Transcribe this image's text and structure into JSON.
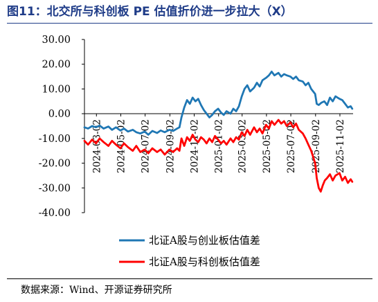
{
  "title": "图11：北交所与科创板 PE 估值折价进一步拉大（X）",
  "source": "数据来源：Wind、开源证券研究所",
  "chart_data": {
    "type": "line",
    "title": "北交所与科创板 PE 估值折价进一步拉大（X）",
    "xlabel": "",
    "ylabel": "",
    "ylim": [
      -40,
      30
    ],
    "yticks": [
      "30.00",
      "20.00",
      "10.00",
      "0.00",
      "-10.00",
      "-20.00",
      "-30.00",
      "-40.00"
    ],
    "x_ticks": [
      "2024-03-02",
      "2024-05-02",
      "2024-07-02",
      "2024-09-02",
      "2024-11-02",
      "2025-01-02",
      "2025-03-02",
      "2025-05-02",
      "2025-07-02",
      "2025-09-02",
      "2025-11-02"
    ],
    "x_range": [
      "2024-02-01",
      "2025-12-05"
    ],
    "grid": false,
    "legend_position": "bottom",
    "series": [
      {
        "name": "北证A股与创业板估值差",
        "color": "#1f77b4",
        "points": [
          [
            "2024-02-01",
            -5.5
          ],
          [
            "2024-02-10",
            -6.0
          ],
          [
            "2024-02-20",
            -5.0
          ],
          [
            "2024-03-01",
            -5.5
          ],
          [
            "2024-03-10",
            -4.8
          ],
          [
            "2024-03-20",
            -6.0
          ],
          [
            "2024-04-01",
            -5.2
          ],
          [
            "2024-04-10",
            -6.5
          ],
          [
            "2024-04-20",
            -5.5
          ],
          [
            "2024-05-01",
            -6.8
          ],
          [
            "2024-05-10",
            -6.0
          ],
          [
            "2024-05-20",
            -7.2
          ],
          [
            "2024-06-01",
            -6.5
          ],
          [
            "2024-06-10",
            -7.5
          ],
          [
            "2024-06-20",
            -8.0
          ],
          [
            "2024-07-01",
            -7.2
          ],
          [
            "2024-07-10",
            -8.5
          ],
          [
            "2024-07-20",
            -7.0
          ],
          [
            "2024-08-01",
            -7.8
          ],
          [
            "2024-08-10",
            -6.8
          ],
          [
            "2024-08-20",
            -7.5
          ],
          [
            "2024-09-01",
            -6.5
          ],
          [
            "2024-09-10",
            -7.0
          ],
          [
            "2024-09-20",
            -6.0
          ],
          [
            "2024-09-26",
            -5.5
          ],
          [
            "2024-10-01",
            -1.5
          ],
          [
            "2024-10-08",
            2.5
          ],
          [
            "2024-10-15",
            5.5
          ],
          [
            "2024-10-22",
            4.0
          ],
          [
            "2024-10-29",
            6.5
          ],
          [
            "2024-11-05",
            5.0
          ],
          [
            "2024-11-12",
            6.0
          ],
          [
            "2024-11-19",
            3.5
          ],
          [
            "2024-11-26",
            1.5
          ],
          [
            "2024-12-03",
            0.0
          ],
          [
            "2024-12-10",
            -1.5
          ],
          [
            "2024-12-17",
            -0.5
          ],
          [
            "2024-12-24",
            1.0
          ],
          [
            "2025-01-01",
            2.0
          ],
          [
            "2025-01-08",
            0.5
          ],
          [
            "2025-01-15",
            -0.5
          ],
          [
            "2025-01-22",
            1.0
          ],
          [
            "2025-02-01",
            0.0
          ],
          [
            "2025-02-08",
            2.0
          ],
          [
            "2025-02-15",
            1.0
          ],
          [
            "2025-02-22",
            3.0
          ],
          [
            "2025-03-01",
            7.0
          ],
          [
            "2025-03-08",
            10.0
          ],
          [
            "2025-03-15",
            11.5
          ],
          [
            "2025-03-22",
            9.0
          ],
          [
            "2025-04-01",
            10.5
          ],
          [
            "2025-04-08",
            12.5
          ],
          [
            "2025-04-15",
            11.0
          ],
          [
            "2025-04-22",
            13.5
          ],
          [
            "2025-05-01",
            14.5
          ],
          [
            "2025-05-08",
            15.5
          ],
          [
            "2025-05-15",
            17.0
          ],
          [
            "2025-05-22",
            15.5
          ],
          [
            "2025-06-01",
            16.5
          ],
          [
            "2025-06-08",
            15.0
          ],
          [
            "2025-06-15",
            16.0
          ],
          [
            "2025-06-22",
            15.5
          ],
          [
            "2025-07-01",
            15.0
          ],
          [
            "2025-07-08",
            14.0
          ],
          [
            "2025-07-15",
            15.0
          ],
          [
            "2025-07-22",
            13.5
          ],
          [
            "2025-08-01",
            13.0
          ],
          [
            "2025-08-08",
            11.5
          ],
          [
            "2025-08-15",
            12.5
          ],
          [
            "2025-08-22",
            10.0
          ],
          [
            "2025-09-01",
            8.0
          ],
          [
            "2025-09-05",
            4.0
          ],
          [
            "2025-09-10",
            3.5
          ],
          [
            "2025-09-17",
            4.5
          ],
          [
            "2025-09-24",
            5.0
          ],
          [
            "2025-10-01",
            3.5
          ],
          [
            "2025-10-08",
            6.5
          ],
          [
            "2025-10-15",
            5.0
          ],
          [
            "2025-10-22",
            7.0
          ],
          [
            "2025-11-01",
            6.0
          ],
          [
            "2025-11-08",
            5.5
          ],
          [
            "2025-11-15",
            4.0
          ],
          [
            "2025-11-22",
            2.5
          ],
          [
            "2025-11-29",
            3.0
          ],
          [
            "2025-12-03",
            2.0
          ]
        ]
      },
      {
        "name": "北证A股与科创板估值差",
        "color": "#ff0000",
        "points": [
          [
            "2024-02-01",
            -11.0
          ],
          [
            "2024-02-10",
            -12.5
          ],
          [
            "2024-02-20",
            -10.5
          ],
          [
            "2024-03-01",
            -12.0
          ],
          [
            "2024-03-10",
            -10.0
          ],
          [
            "2024-03-20",
            -11.5
          ],
          [
            "2024-04-01",
            -13.0
          ],
          [
            "2024-04-10",
            -11.0
          ],
          [
            "2024-04-20",
            -12.5
          ],
          [
            "2024-05-01",
            -14.0
          ],
          [
            "2024-05-10",
            -12.0
          ],
          [
            "2024-05-20",
            -13.5
          ],
          [
            "2024-06-01",
            -15.0
          ],
          [
            "2024-06-10",
            -13.0
          ],
          [
            "2024-06-20",
            -15.5
          ],
          [
            "2024-07-01",
            -14.5
          ],
          [
            "2024-07-10",
            -16.0
          ],
          [
            "2024-07-20",
            -14.0
          ],
          [
            "2024-08-01",
            -15.5
          ],
          [
            "2024-08-10",
            -14.5
          ],
          [
            "2024-08-20",
            -16.5
          ],
          [
            "2024-09-01",
            -14.5
          ],
          [
            "2024-09-10",
            -15.5
          ],
          [
            "2024-09-20",
            -14.0
          ],
          [
            "2024-09-26",
            -15.0
          ],
          [
            "2024-10-01",
            -10.0
          ],
          [
            "2024-10-08",
            -13.0
          ],
          [
            "2024-10-15",
            -9.5
          ],
          [
            "2024-10-22",
            -11.0
          ],
          [
            "2024-10-29",
            -8.5
          ],
          [
            "2024-11-05",
            -10.5
          ],
          [
            "2024-11-12",
            -11.5
          ],
          [
            "2024-11-19",
            -9.5
          ],
          [
            "2024-11-26",
            -10.5
          ],
          [
            "2024-12-03",
            -12.0
          ],
          [
            "2024-12-10",
            -10.0
          ],
          [
            "2024-12-17",
            -11.5
          ],
          [
            "2024-12-24",
            -9.0
          ],
          [
            "2025-01-01",
            -10.5
          ],
          [
            "2025-01-08",
            -12.0
          ],
          [
            "2025-01-15",
            -11.0
          ],
          [
            "2025-01-22",
            -12.5
          ],
          [
            "2025-02-01",
            -10.0
          ],
          [
            "2025-02-08",
            -11.5
          ],
          [
            "2025-02-15",
            -9.5
          ],
          [
            "2025-02-22",
            -10.5
          ],
          [
            "2025-03-01",
            -7.5
          ],
          [
            "2025-03-08",
            -9.0
          ],
          [
            "2025-03-15",
            -6.5
          ],
          [
            "2025-03-22",
            -8.5
          ],
          [
            "2025-04-01",
            -5.5
          ],
          [
            "2025-04-08",
            -7.5
          ],
          [
            "2025-04-15",
            -6.0
          ],
          [
            "2025-04-22",
            -8.0
          ],
          [
            "2025-05-01",
            -4.5
          ],
          [
            "2025-05-08",
            -6.0
          ],
          [
            "2025-05-15",
            -3.0
          ],
          [
            "2025-05-22",
            -4.5
          ],
          [
            "2025-06-01",
            -2.5
          ],
          [
            "2025-06-08",
            -4.0
          ],
          [
            "2025-06-15",
            -3.0
          ],
          [
            "2025-06-22",
            -5.0
          ],
          [
            "2025-07-01",
            -3.5
          ],
          [
            "2025-07-08",
            -5.5
          ],
          [
            "2025-07-15",
            -4.0
          ],
          [
            "2025-07-22",
            -6.5
          ],
          [
            "2025-08-01",
            -8.0
          ],
          [
            "2025-08-08",
            -10.0
          ],
          [
            "2025-08-15",
            -12.5
          ],
          [
            "2025-08-22",
            -15.0
          ],
          [
            "2025-09-01",
            -20.0
          ],
          [
            "2025-09-05",
            -26.0
          ],
          [
            "2025-09-10",
            -30.0
          ],
          [
            "2025-09-15",
            -31.5
          ],
          [
            "2025-09-20",
            -29.0
          ],
          [
            "2025-09-25",
            -27.0
          ],
          [
            "2025-10-01",
            -26.0
          ],
          [
            "2025-10-08",
            -24.5
          ],
          [
            "2025-10-15",
            -27.0
          ],
          [
            "2025-10-22",
            -25.0
          ],
          [
            "2025-11-01",
            -24.0
          ],
          [
            "2025-11-08",
            -27.0
          ],
          [
            "2025-11-15",
            -25.5
          ],
          [
            "2025-11-22",
            -28.0
          ],
          [
            "2025-11-29",
            -26.5
          ],
          [
            "2025-12-03",
            -27.5
          ]
        ]
      }
    ]
  }
}
